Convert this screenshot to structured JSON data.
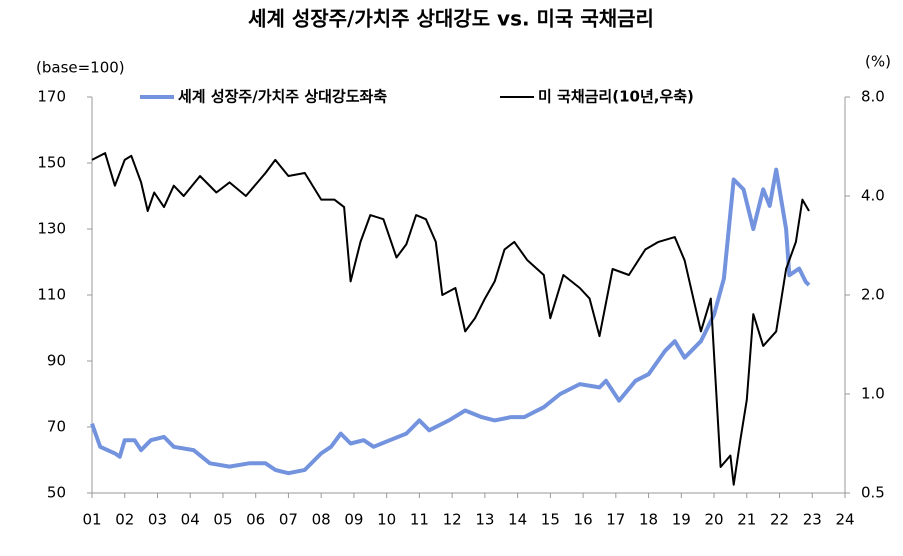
{
  "chart_data": {
    "type": "line",
    "title": "세계 성장주/가치주 상대강도 vs. 미국 국채금리",
    "y_axis_label": "(base=100)",
    "y2_axis_label": "(%)",
    "xlim": [
      1,
      24
    ],
    "xticks": [
      {
        "value": 1,
        "label": "01"
      },
      {
        "value": 2,
        "label": "02"
      },
      {
        "value": 3,
        "label": "03"
      },
      {
        "value": 4,
        "label": "04"
      },
      {
        "value": 5,
        "label": "05"
      },
      {
        "value": 6,
        "label": "06"
      },
      {
        "value": 7,
        "label": "07"
      },
      {
        "value": 8,
        "label": "08"
      },
      {
        "value": 9,
        "label": "09"
      },
      10,
      11,
      12,
      13,
      14,
      15,
      16,
      17,
      18,
      19,
      20,
      21,
      22,
      23,
      24
    ],
    "ylim": [
      50,
      170
    ],
    "yticks": [
      50,
      70,
      90,
      110,
      130,
      150,
      170
    ],
    "y2lim": [
      0.5,
      8
    ],
    "y2scale": "log",
    "y2ticks": [
      {
        "value": 0.5,
        "label": "0.5"
      },
      {
        "value": 1,
        "label": "1.0"
      },
      {
        "value": 2,
        "label": "2.0"
      },
      {
        "value": 4,
        "label": "4.0"
      },
      {
        "value": 8,
        "label": "8.0"
      }
    ],
    "legend": "top",
    "series": [
      {
        "name": "세계 성장주/가치주 상대강도좌축",
        "color": "#7393de",
        "axis": "y",
        "x": [
          1.0,
          1.25,
          1.7,
          1.85,
          2.0,
          2.3,
          2.5,
          2.8,
          3.2,
          3.5,
          4.1,
          4.6,
          5.2,
          5.8,
          6.3,
          6.6,
          7.0,
          7.5,
          8.0,
          8.3,
          8.6,
          8.9,
          9.3,
          9.6,
          10.1,
          10.6,
          11.0,
          11.3,
          11.9,
          12.4,
          12.9,
          13.3,
          13.8,
          14.2,
          14.8,
          15.3,
          15.9,
          16.5,
          16.7,
          17.1,
          17.6,
          18.0,
          18.5,
          18.8,
          19.1,
          19.6,
          20.0,
          20.3,
          20.6,
          20.9,
          21.2,
          21.5,
          21.7,
          21.9,
          22.2,
          22.3,
          22.6,
          22.8,
          22.9
        ],
        "values": [
          71,
          64,
          62,
          61,
          66,
          66,
          63,
          66,
          67,
          64,
          63,
          59,
          58,
          59,
          59,
          57,
          56,
          57,
          62,
          64,
          68,
          65,
          66,
          64,
          66,
          68,
          72,
          69,
          72,
          75,
          73,
          72,
          73,
          73,
          76,
          80,
          83,
          82,
          84,
          78,
          84,
          86,
          93,
          96,
          91,
          96,
          104,
          115,
          145,
          142,
          130,
          142,
          137,
          148,
          130,
          116,
          118,
          114,
          113
        ]
      },
      {
        "name": "미 국채금리(10년,우축)",
        "color": "#000000",
        "axis": "y2",
        "x": [
          1.0,
          1.4,
          1.7,
          2.0,
          2.2,
          2.5,
          2.7,
          2.9,
          3.2,
          3.5,
          3.8,
          4.3,
          4.8,
          5.2,
          5.7,
          6.3,
          6.6,
          7.0,
          7.5,
          8.0,
          8.4,
          8.7,
          8.9,
          9.2,
          9.5,
          9.9,
          10.3,
          10.6,
          10.9,
          11.2,
          11.5,
          11.7,
          12.1,
          12.4,
          12.7,
          13.0,
          13.3,
          13.6,
          13.9,
          14.3,
          14.8,
          15.0,
          15.4,
          15.9,
          16.2,
          16.5,
          16.9,
          17.4,
          17.9,
          18.3,
          18.8,
          19.1,
          19.6,
          19.9,
          20.2,
          20.5,
          20.6,
          20.8,
          21.0,
          21.2,
          21.5,
          21.9,
          22.2,
          22.5,
          22.7,
          22.9
        ],
        "values": [
          5.15,
          5.4,
          4.3,
          5.15,
          5.3,
          4.4,
          3.6,
          4.1,
          3.7,
          4.3,
          4.0,
          4.6,
          4.1,
          4.4,
          4.0,
          4.7,
          5.15,
          4.6,
          4.7,
          3.9,
          3.9,
          3.7,
          2.2,
          2.9,
          3.5,
          3.4,
          2.6,
          2.85,
          3.5,
          3.4,
          2.9,
          2.0,
          2.1,
          1.55,
          1.7,
          1.95,
          2.2,
          2.75,
          2.9,
          2.55,
          2.3,
          1.7,
          2.3,
          2.1,
          1.95,
          1.5,
          2.4,
          2.3,
          2.75,
          2.9,
          3.0,
          2.55,
          1.55,
          1.95,
          0.6,
          0.65,
          0.53,
          0.72,
          0.96,
          1.75,
          1.4,
          1.55,
          2.4,
          2.9,
          3.9,
          3.6
        ]
      }
    ]
  }
}
